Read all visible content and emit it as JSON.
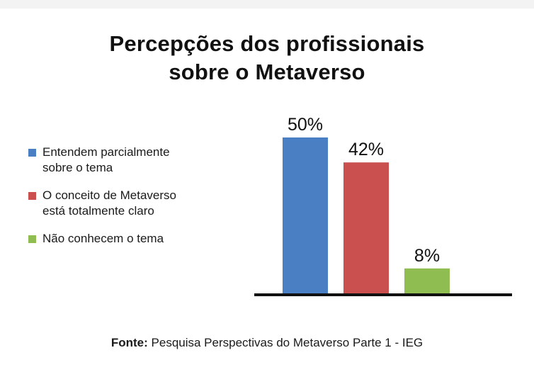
{
  "title_lines": [
    "Percepções dos profissionais",
    "sobre o Metaverso"
  ],
  "legend": [
    {
      "label": "Entendem parcialmente\nsobre o tema",
      "color": "#4a7fc4"
    },
    {
      "label": "O conceito de Metaverso\nestá totalmente claro",
      "color": "#c9504e"
    },
    {
      "label": "Não conhecem o tema",
      "color": "#8fbd51"
    }
  ],
  "source": {
    "prefix": "Fonte:",
    "text": " Pesquisa Perspectivas do Metaverso Parte 1 - IEG"
  },
  "chart_data": {
    "type": "bar",
    "title": "Percepções dos profissionais sobre o Metaverso",
    "categories": [
      "Entendem parcialmente sobre o tema",
      "O conceito de Metaverso está totalmente claro",
      "Não conhecem o tema"
    ],
    "values": [
      50,
      42,
      8
    ],
    "value_labels": [
      "50%",
      "42%",
      "8%"
    ],
    "colors": [
      "#4a7fc4",
      "#c9504e",
      "#8fbd51"
    ],
    "ylim": [
      0,
      50
    ],
    "grid": false,
    "legend_position": "left"
  }
}
